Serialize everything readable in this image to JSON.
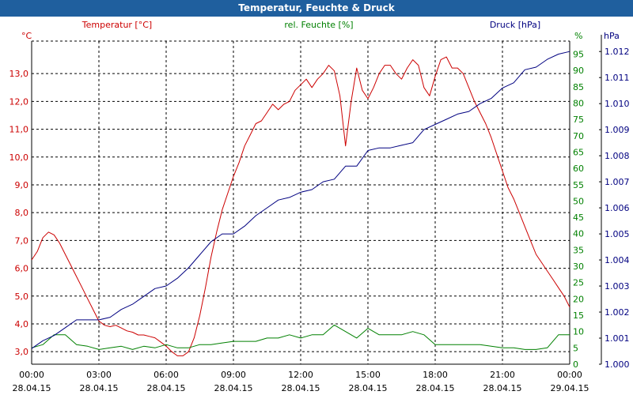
{
  "window": {
    "title": "Temperatur, Feuchte & Druck"
  },
  "chart_data": {
    "type": "line",
    "title": "Temperatur, Feuchte & Druck",
    "x_ticks": [
      {
        "time": "00:00",
        "date": "28.04.15"
      },
      {
        "time": "03:00",
        "date": "28.04.15"
      },
      {
        "time": "06:00",
        "date": "28.04.15"
      },
      {
        "time": "09:00",
        "date": "28.04.15"
      },
      {
        "time": "12:00",
        "date": "28.04.15"
      },
      {
        "time": "15:00",
        "date": "28.04.15"
      },
      {
        "time": "18:00",
        "date": "28.04.15"
      },
      {
        "time": "21:00",
        "date": "28.04.15"
      },
      {
        "time": "00:00",
        "date": "29.04.15"
      }
    ],
    "xlim_hours": [
      0,
      24
    ],
    "axes": {
      "temperature": {
        "label": "Temperatur [°C]",
        "unit": "°C",
        "color": "#cc0000",
        "ylim": [
          2.55,
          14.17
        ],
        "ticks": [
          "3,0",
          "4,0",
          "5,0",
          "6,0",
          "7,0",
          "8,0",
          "9,0",
          "10,0",
          "11,0",
          "12,0",
          "13,0"
        ]
      },
      "humidity": {
        "label": "rel. Feuchte [%]",
        "unit": "%",
        "color": "#008000",
        "ylim": [
          0,
          99
        ],
        "ticks": [
          "0",
          "5",
          "10",
          "15",
          "20",
          "25",
          "30",
          "35",
          "40",
          "45",
          "50",
          "55",
          "60",
          "65",
          "70",
          "75",
          "80",
          "85",
          "90",
          "95"
        ]
      },
      "pressure": {
        "label": "Druck [hPa]",
        "unit": "hPa",
        "color": "#000080",
        "ylim": [
          1.0,
          1.0124
        ],
        "ticks": [
          "1.000",
          "1.001",
          "1.002",
          "1.003",
          "1.004",
          "1.005",
          "1.006",
          "1.007",
          "1.008",
          "1.009",
          "1.010",
          "1.011",
          "1.012"
        ]
      }
    },
    "series": [
      {
        "name": "Temperatur",
        "axis": "temperature",
        "color": "#cc0000",
        "x": [
          0,
          0.25,
          0.5,
          0.75,
          1,
          1.25,
          1.5,
          1.75,
          2,
          2.25,
          2.5,
          2.75,
          3,
          3.25,
          3.5,
          3.75,
          4,
          4.25,
          4.5,
          4.75,
          5,
          5.25,
          5.5,
          5.75,
          6,
          6.25,
          6.5,
          6.75,
          7,
          7.25,
          7.5,
          7.75,
          8,
          8.25,
          8.5,
          8.75,
          9,
          9.25,
          9.5,
          9.75,
          10,
          10.25,
          10.5,
          10.75,
          11,
          11.25,
          11.5,
          11.75,
          12,
          12.25,
          12.5,
          12.75,
          13,
          13.25,
          13.5,
          13.75,
          14,
          14.25,
          14.5,
          14.75,
          15,
          15.25,
          15.5,
          15.75,
          16,
          16.25,
          16.5,
          16.75,
          17,
          17.25,
          17.5,
          17.75,
          18,
          18.25,
          18.5,
          18.75,
          19,
          19.25,
          19.5,
          19.75,
          20,
          20.25,
          20.5,
          20.75,
          21,
          21.25,
          21.5,
          21.75,
          22,
          22.25,
          22.5,
          22.75,
          23,
          23.25,
          23.5,
          23.75,
          24
        ],
        "values": [
          6.3,
          6.6,
          7.1,
          7.3,
          7.2,
          6.9,
          6.5,
          6.1,
          5.7,
          5.3,
          4.9,
          4.5,
          4.1,
          3.95,
          3.9,
          3.95,
          3.85,
          3.75,
          3.7,
          3.6,
          3.6,
          3.55,
          3.5,
          3.35,
          3.2,
          3.0,
          2.85,
          2.85,
          3.0,
          3.5,
          4.3,
          5.3,
          6.4,
          7.3,
          8.1,
          8.7,
          9.3,
          9.8,
          10.4,
          10.8,
          11.2,
          11.3,
          11.6,
          11.9,
          11.7,
          11.9,
          12.0,
          12.4,
          12.6,
          12.8,
          12.5,
          12.8,
          13.0,
          13.3,
          13.1,
          12.2,
          10.4,
          12.0,
          13.2,
          12.4,
          12.1,
          12.5,
          13.0,
          13.3,
          13.3,
          13.0,
          12.8,
          13.2,
          13.5,
          13.3,
          12.5,
          12.2,
          12.9,
          13.5,
          13.6,
          13.2,
          13.2,
          13.0,
          12.5,
          12.0,
          11.6,
          11.2,
          10.7,
          10.1,
          9.5,
          8.9,
          8.5,
          8.0,
          7.5,
          7.0,
          6.5,
          6.2,
          5.9,
          5.6,
          5.3,
          5.0,
          4.6
        ]
      },
      {
        "name": "rel. Feuchte",
        "axis": "humidity",
        "color": "#008000",
        "x": [
          0,
          0.5,
          1,
          1.5,
          2,
          2.5,
          3,
          3.5,
          4,
          4.5,
          5,
          5.5,
          6,
          6.5,
          7,
          7.5,
          8,
          8.5,
          9,
          9.5,
          10,
          10.5,
          11,
          11.5,
          12,
          12.5,
          13,
          13.5,
          14,
          14.5,
          15,
          15.5,
          16,
          16.5,
          17,
          17.5,
          18,
          18.5,
          19,
          19.5,
          20,
          20.5,
          21,
          21.5,
          22,
          22.5,
          23,
          23.5,
          24
        ],
        "values": [
          5,
          6,
          9,
          9,
          6,
          5.5,
          4.5,
          5,
          5.5,
          4.5,
          5.5,
          5,
          6,
          5,
          5,
          6,
          6,
          6.5,
          7,
          7,
          7,
          8,
          8,
          9,
          8,
          9,
          9,
          12,
          10,
          8,
          11,
          9,
          9,
          9,
          10,
          9,
          6,
          6,
          6,
          6,
          6,
          5.5,
          5,
          5,
          4.5,
          4.5,
          5,
          9,
          9
        ]
      },
      {
        "name": "Druck",
        "axis": "pressure",
        "color": "#000080",
        "x": [
          0,
          0.5,
          1,
          1.5,
          2,
          2.5,
          3,
          3.5,
          4,
          4.5,
          5,
          5.5,
          6,
          6.5,
          7,
          7.5,
          8,
          8.5,
          9,
          9.5,
          10,
          10.5,
          11,
          11.5,
          12,
          12.5,
          13,
          13.5,
          14,
          14.5,
          15,
          15.5,
          16,
          16.5,
          17,
          17.5,
          18,
          18.5,
          19,
          19.5,
          20,
          20.5,
          21,
          21.5,
          22,
          22.5,
          23,
          23.5,
          24
        ],
        "values": [
          1.0006,
          1.0009,
          1.0011,
          1.0014,
          1.0017,
          1.0017,
          1.0017,
          1.0018,
          1.0021,
          1.0023,
          1.0026,
          1.0029,
          1.003,
          1.0033,
          1.0037,
          1.0042,
          1.0047,
          1.005,
          1.005,
          1.0053,
          1.0057,
          1.006,
          1.0063,
          1.0064,
          1.0066,
          1.0067,
          1.007,
          1.0071,
          1.0076,
          1.0076,
          1.0082,
          1.0083,
          1.0083,
          1.0084,
          1.0085,
          1.009,
          1.0092,
          1.0094,
          1.0096,
          1.0097,
          1.01,
          1.0102,
          1.0106,
          1.0108,
          1.0113,
          1.0114,
          1.0117,
          1.0119,
          1.012
        ]
      }
    ]
  }
}
